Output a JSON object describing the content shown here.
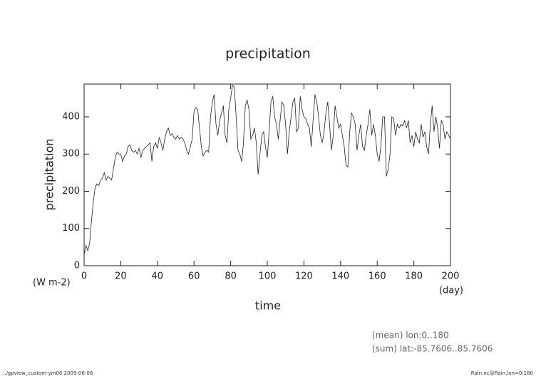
{
  "chart_data": {
    "type": "line",
    "title": "precipitation",
    "x_label": "time",
    "y_label": "precipitation",
    "x_unit": "(day)",
    "y_unit": "(W m-2)",
    "notes": [
      "(mean) lon:0..180",
      "(sum) lat:-85.7606..85.7606"
    ],
    "footer_left": "../gpview_custom-ym06  2009-06-08",
    "footer_right": "Rain.nc@Rain,lon=0:180",
    "xlim": [
      0,
      200
    ],
    "ylim": [
      0,
      488
    ],
    "xticks": [
      0,
      20,
      40,
      60,
      80,
      100,
      120,
      140,
      160,
      180,
      200
    ],
    "yticks": [
      0,
      100,
      200,
      300,
      400
    ],
    "color": "#222222",
    "x": [
      0,
      1,
      2,
      3,
      4,
      5,
      6,
      7,
      8,
      9,
      10,
      11,
      12,
      13,
      14,
      15,
      16,
      17,
      18,
      19,
      20,
      21,
      22,
      23,
      24,
      25,
      26,
      27,
      28,
      29,
      30,
      31,
      32,
      33,
      34,
      35,
      36,
      37,
      38,
      39,
      40,
      41,
      42,
      43,
      44,
      45,
      46,
      47,
      48,
      49,
      50,
      51,
      52,
      53,
      54,
      55,
      56,
      57,
      58,
      59,
      60,
      61,
      62,
      63,
      64,
      65,
      66,
      67,
      68,
      69,
      70,
      71,
      72,
      73,
      74,
      75,
      76,
      77,
      78,
      79,
      80,
      81,
      82,
      83,
      84,
      85,
      86,
      87,
      88,
      89,
      90,
      91,
      92,
      93,
      94,
      95,
      96,
      97,
      98,
      99,
      100,
      101,
      102,
      103,
      104,
      105,
      106,
      107,
      108,
      109,
      110,
      111,
      112,
      113,
      114,
      115,
      116,
      117,
      118,
      119,
      120,
      121,
      122,
      123,
      124,
      125,
      126,
      127,
      128,
      129,
      130,
      131,
      132,
      133,
      134,
      135,
      136,
      137,
      138,
      139,
      140,
      141,
      142,
      143,
      144,
      145,
      146,
      147,
      148,
      149,
      150,
      151,
      152,
      153,
      154,
      155,
      156,
      157,
      158,
      159,
      160,
      161,
      162,
      163,
      164,
      165,
      166,
      167,
      168,
      169,
      170,
      171,
      172,
      173,
      174,
      175,
      176,
      177,
      178,
      179,
      180,
      181,
      182,
      183,
      184,
      185,
      186,
      187,
      188,
      189,
      190,
      191,
      192,
      193,
      194,
      195,
      196,
      197,
      198,
      199,
      200
    ],
    "values": [
      30,
      55,
      40,
      60,
      120,
      170,
      210,
      220,
      215,
      230,
      235,
      250,
      230,
      240,
      235,
      230,
      260,
      290,
      305,
      300,
      300,
      280,
      295,
      300,
      320,
      325,
      310,
      305,
      310,
      300,
      315,
      290,
      310,
      315,
      320,
      325,
      330,
      280,
      320,
      330,
      315,
      345,
      330,
      310,
      340,
      360,
      370,
      350,
      355,
      345,
      340,
      350,
      340,
      345,
      340,
      330,
      310,
      300,
      320,
      340,
      415,
      425,
      420,
      370,
      320,
      295,
      305,
      310,
      305,
      400,
      440,
      460,
      380,
      350,
      390,
      410,
      430,
      350,
      330,
      420,
      450,
      485,
      480,
      400,
      310,
      300,
      280,
      330,
      430,
      445,
      420,
      340,
      350,
      370,
      330,
      245,
      300,
      350,
      360,
      320,
      290,
      360,
      440,
      455,
      400,
      380,
      340,
      390,
      440,
      430,
      380,
      300,
      360,
      400,
      440,
      450,
      360,
      370,
      455,
      420,
      400,
      395,
      380,
      370,
      320,
      390,
      460,
      440,
      400,
      350,
      330,
      360,
      410,
      440,
      380,
      310,
      350,
      430,
      400,
      370,
      380,
      350,
      320,
      270,
      265,
      360,
      410,
      400,
      380,
      310,
      350,
      380,
      320,
      310,
      350,
      380,
      420,
      350,
      380,
      350,
      300,
      280,
      320,
      400,
      400,
      240,
      260,
      300,
      400,
      395,
      350,
      380,
      370,
      380,
      375,
      390,
      370,
      390,
      330,
      350,
      320,
      360,
      340,
      330,
      380,
      345,
      360,
      320,
      300,
      380,
      430,
      360,
      400,
      370,
      315,
      390,
      380,
      340,
      360,
      350,
      340
    ]
  }
}
